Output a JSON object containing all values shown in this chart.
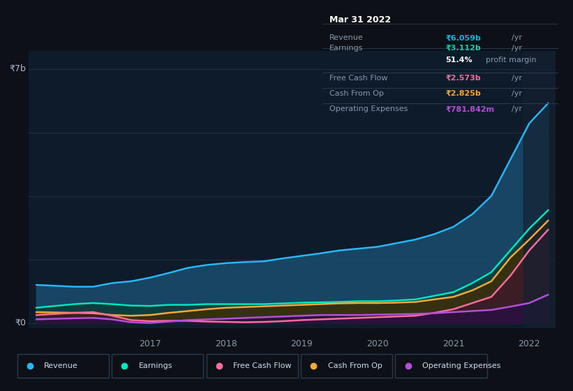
{
  "bg_color": "#0d1117",
  "plot_bg_color": "#0d1b2a",
  "grid_color": "#1e3048",
  "title_date": "Mar 31 2022",
  "tooltip": {
    "Revenue": {
      "value": "₹6.059b",
      "unit": "/yr",
      "color": "#00b8d9"
    },
    "Earnings": {
      "value": "₹3.112b",
      "unit": "/yr",
      "color": "#00d4aa"
    },
    "profit_margin": "51.4%",
    "Free Cash Flow": {
      "value": "₹2.573b",
      "unit": "/yr",
      "color": "#ff6b9d"
    },
    "Cash From Op": {
      "value": "₹2.825b",
      "unit": "/yr",
      "color": "#f4a937"
    },
    "Operating Expenses": {
      "value": "₹781.842m",
      "unit": "/yr",
      "color": "#b44fd9"
    }
  },
  "ylabel_top": "₹7b",
  "ylabel_bottom": "₹0",
  "x_labels": [
    "2017",
    "2018",
    "2019",
    "2020",
    "2021",
    "2022"
  ],
  "series": {
    "Revenue": {
      "color": "#29b6f6",
      "fill_color": "#1a4a6b",
      "fill_alpha": 0.9,
      "data_x": [
        2015.5,
        2016.0,
        2016.25,
        2016.5,
        2016.75,
        2017.0,
        2017.25,
        2017.5,
        2017.75,
        2018.0,
        2018.25,
        2018.5,
        2018.75,
        2019.0,
        2019.25,
        2019.5,
        2019.75,
        2020.0,
        2020.25,
        2020.5,
        2020.75,
        2021.0,
        2021.25,
        2021.5,
        2021.75,
        2022.0,
        2022.25
      ],
      "data_y": [
        1.05,
        1.0,
        1.0,
        1.1,
        1.15,
        1.25,
        1.38,
        1.52,
        1.6,
        1.65,
        1.68,
        1.7,
        1.78,
        1.85,
        1.92,
        2.0,
        2.05,
        2.1,
        2.2,
        2.3,
        2.45,
        2.65,
        3.0,
        3.5,
        4.5,
        5.5,
        6.059
      ]
    },
    "Earnings": {
      "color": "#00e5c0",
      "fill_color": "#0a3d3a",
      "fill_alpha": 0.85,
      "data_x": [
        2015.5,
        2016.0,
        2016.25,
        2016.5,
        2016.75,
        2017.0,
        2017.25,
        2017.5,
        2017.75,
        2018.0,
        2018.25,
        2018.5,
        2018.75,
        2019.0,
        2019.25,
        2019.5,
        2019.75,
        2020.0,
        2020.25,
        2020.5,
        2020.75,
        2021.0,
        2021.25,
        2021.5,
        2021.75,
        2022.0,
        2022.25
      ],
      "data_y": [
        0.42,
        0.52,
        0.55,
        0.52,
        0.48,
        0.47,
        0.5,
        0.5,
        0.52,
        0.52,
        0.52,
        0.52,
        0.54,
        0.56,
        0.57,
        0.58,
        0.6,
        0.6,
        0.62,
        0.65,
        0.75,
        0.85,
        1.1,
        1.4,
        2.0,
        2.6,
        3.112
      ]
    },
    "Cash From Op": {
      "color": "#f4a937",
      "fill_color": "#3d2e0a",
      "fill_alpha": 0.85,
      "data_x": [
        2015.5,
        2016.0,
        2016.25,
        2016.5,
        2016.75,
        2017.0,
        2017.25,
        2017.5,
        2017.75,
        2018.0,
        2018.25,
        2018.5,
        2018.75,
        2019.0,
        2019.25,
        2019.5,
        2019.75,
        2020.0,
        2020.25,
        2020.5,
        2020.75,
        2021.0,
        2021.25,
        2021.5,
        2021.75,
        2022.0,
        2022.25
      ],
      "data_y": [
        0.3,
        0.28,
        0.27,
        0.22,
        0.2,
        0.22,
        0.28,
        0.33,
        0.38,
        0.42,
        0.44,
        0.46,
        0.48,
        0.5,
        0.52,
        0.54,
        0.55,
        0.55,
        0.56,
        0.58,
        0.65,
        0.72,
        0.9,
        1.15,
        1.8,
        2.3,
        2.825
      ]
    },
    "Free Cash Flow": {
      "color": "#ff6b9d",
      "fill_color": "#3d1a2a",
      "fill_alpha": 0.85,
      "data_x": [
        2015.5,
        2016.0,
        2016.25,
        2016.5,
        2016.75,
        2017.0,
        2017.25,
        2017.5,
        2017.75,
        2018.0,
        2018.25,
        2018.5,
        2018.75,
        2019.0,
        2019.25,
        2019.5,
        2019.75,
        2020.0,
        2020.25,
        2020.5,
        2020.75,
        2021.0,
        2021.25,
        2021.5,
        2021.75,
        2022.0,
        2022.25
      ],
      "data_y": [
        0.22,
        0.28,
        0.3,
        0.2,
        0.08,
        0.05,
        0.06,
        0.06,
        0.04,
        0.03,
        0.02,
        0.03,
        0.05,
        0.08,
        0.1,
        0.12,
        0.14,
        0.16,
        0.18,
        0.2,
        0.28,
        0.38,
        0.55,
        0.72,
        1.3,
        2.0,
        2.573
      ]
    },
    "Operating Expenses": {
      "color": "#b44fd9",
      "fill_color": "#2a1040",
      "fill_alpha": 0.85,
      "data_x": [
        2015.5,
        2016.0,
        2016.25,
        2016.5,
        2016.75,
        2017.0,
        2017.25,
        2017.5,
        2017.75,
        2018.0,
        2018.25,
        2018.5,
        2018.75,
        2019.0,
        2019.25,
        2019.5,
        2019.75,
        2020.0,
        2020.25,
        2020.5,
        2020.75,
        2021.0,
        2021.25,
        2021.5,
        2021.75,
        2022.0,
        2022.25
      ],
      "data_y": [
        0.1,
        0.13,
        0.14,
        0.1,
        0.02,
        0.0,
        0.04,
        0.08,
        0.1,
        0.12,
        0.14,
        0.16,
        0.18,
        0.2,
        0.22,
        0.22,
        0.22,
        0.23,
        0.24,
        0.25,
        0.27,
        0.3,
        0.33,
        0.36,
        0.45,
        0.55,
        0.7818
      ]
    }
  },
  "legend": [
    {
      "label": "Revenue",
      "color": "#29b6f6"
    },
    {
      "label": "Earnings",
      "color": "#00e5c0"
    },
    {
      "label": "Free Cash Flow",
      "color": "#ff6b9d"
    },
    {
      "label": "Cash From Op",
      "color": "#f4a937"
    },
    {
      "label": "Operating Expenses",
      "color": "#b44fd9"
    }
  ]
}
